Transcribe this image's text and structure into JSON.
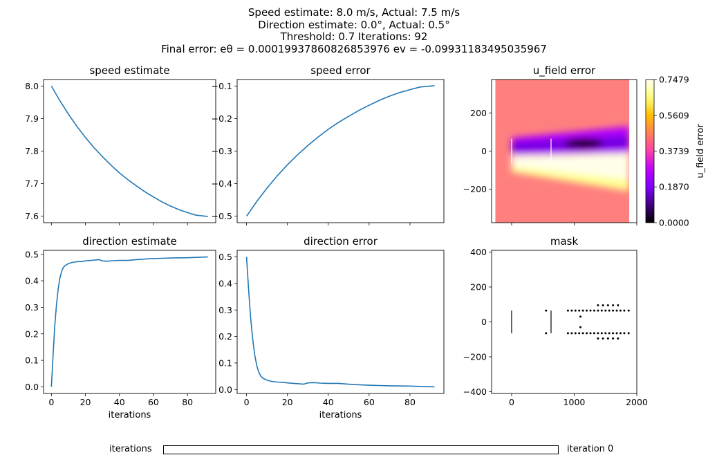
{
  "suptitle": {
    "line1": "Speed estimate: 8.0 m/s, Actual: 7.5 m/s",
    "line2": "Direction estimate: 0.0°, Actual: 0.5°",
    "line3": "Threshold: 0.7 Iterations: 92",
    "line4": "Final error: eθ = 0.00019937860826853976 ev = -0.09931183495035967"
  },
  "slider": {
    "label": "iterations",
    "value_text": "iteration 0",
    "value": 0
  },
  "colors": {
    "line": "#1f77b4",
    "field_bg": "#ff7f7f",
    "cmap": "gnuplot2"
  },
  "chart_data": [
    {
      "type": "line",
      "title": "speed estimate",
      "xlabel": "",
      "ylabel": "",
      "xlim": [
        -4.6,
        96.6
      ],
      "ylim": [
        7.58,
        8.02
      ],
      "xticks": [
        0,
        20,
        40,
        60,
        80
      ],
      "xtick_labels_visible": false,
      "yticks": [
        7.6,
        7.7,
        7.8,
        7.9,
        8.0
      ],
      "ytick_labels": [
        "7.6",
        "7.7",
        "7.8",
        "7.9",
        "8.0"
      ],
      "x": [
        0,
        5,
        10,
        15,
        20,
        25,
        30,
        35,
        40,
        45,
        50,
        55,
        60,
        65,
        70,
        75,
        80,
        85,
        92
      ],
      "y": [
        8.0,
        7.955,
        7.914,
        7.876,
        7.842,
        7.811,
        7.783,
        7.757,
        7.733,
        7.712,
        7.693,
        7.675,
        7.659,
        7.644,
        7.631,
        7.62,
        7.611,
        7.603,
        7.599
      ]
    },
    {
      "type": "line",
      "title": "speed error",
      "xlabel": "",
      "ylabel": "",
      "xlim": [
        -4.6,
        96.6
      ],
      "ylim": [
        -0.52,
        -0.08
      ],
      "xticks": [
        0,
        20,
        40,
        60,
        80
      ],
      "xtick_labels_visible": false,
      "yticks": [
        -0.5,
        -0.4,
        -0.3,
        -0.2,
        -0.1
      ],
      "ytick_labels": [
        "−0.5",
        "−0.4",
        "−0.3",
        "−0.2",
        "−0.1"
      ],
      "x": [
        0,
        5,
        10,
        15,
        20,
        25,
        30,
        35,
        40,
        45,
        50,
        55,
        60,
        65,
        70,
        75,
        80,
        85,
        92
      ],
      "y": [
        -0.5,
        -0.455,
        -0.414,
        -0.376,
        -0.342,
        -0.311,
        -0.283,
        -0.257,
        -0.233,
        -0.212,
        -0.193,
        -0.175,
        -0.159,
        -0.144,
        -0.131,
        -0.12,
        -0.111,
        -0.103,
        -0.099
      ]
    },
    {
      "type": "heatmap",
      "title": "u_field error",
      "xlabel": "",
      "ylabel": "",
      "xlim": [
        -320,
        2000
      ],
      "ylim": [
        -375,
        375
      ],
      "xticks": [
        0,
        1000,
        2000
      ],
      "xtick_labels_visible": false,
      "yticks": [
        -200,
        0,
        200
      ],
      "ytick_labels": [
        "−200",
        "0",
        "200"
      ],
      "extent": [
        -260,
        1880,
        -375,
        375
      ],
      "background_value": 0.5,
      "colorbar": {
        "label": "u_field error",
        "min": 0.0,
        "max": 0.7479,
        "ticks": [
          0.0,
          0.187,
          0.3739,
          0.5609,
          0.7479
        ],
        "tick_labels": [
          "0.0000",
          "0.1870",
          "0.3739",
          "0.5609",
          "0.7479"
        ]
      },
      "turbines": [
        [
          0,
          -65,
          65
        ],
        [
          630,
          -65,
          65
        ]
      ]
    },
    {
      "type": "line",
      "title": "direction estimate",
      "xlabel": "iterations",
      "ylabel": "",
      "xlim": [
        -4.6,
        96.6
      ],
      "ylim": [
        -0.025,
        0.515
      ],
      "xticks": [
        0,
        20,
        40,
        60,
        80
      ],
      "xtick_labels": [
        "0",
        "20",
        "40",
        "60",
        "80"
      ],
      "yticks": [
        0.0,
        0.1,
        0.2,
        0.3,
        0.4,
        0.5
      ],
      "ytick_labels": [
        "0.0",
        "0.1",
        "0.2",
        "0.3",
        "0.4",
        "0.5"
      ],
      "x": [
        0,
        1,
        2,
        3,
        4,
        5,
        6,
        7,
        8,
        10,
        12,
        15,
        18,
        20,
        23,
        25,
        28,
        30,
        33,
        36,
        40,
        45,
        50,
        55,
        60,
        65,
        70,
        80,
        92
      ],
      "y": [
        0.0,
        0.12,
        0.23,
        0.31,
        0.37,
        0.41,
        0.435,
        0.45,
        0.457,
        0.465,
        0.469,
        0.472,
        0.473,
        0.475,
        0.477,
        0.478,
        0.48,
        0.475,
        0.474,
        0.476,
        0.477,
        0.477,
        0.48,
        0.482,
        0.484,
        0.485,
        0.486,
        0.487,
        0.49
      ]
    },
    {
      "type": "line",
      "title": "direction error",
      "xlabel": "iterations",
      "ylabel": "",
      "xlim": [
        -4.6,
        96.6
      ],
      "ylim": [
        -0.015,
        0.525
      ],
      "xticks": [
        0,
        20,
        40,
        60,
        80
      ],
      "xtick_labels": [
        "0",
        "20",
        "40",
        "60",
        "80"
      ],
      "yticks": [
        0.0,
        0.1,
        0.2,
        0.3,
        0.4,
        0.5
      ],
      "ytick_labels": [
        "0.0",
        "0.1",
        "0.2",
        "0.3",
        "0.4",
        "0.5"
      ],
      "x": [
        0,
        1,
        2,
        3,
        4,
        5,
        6,
        7,
        8,
        10,
        12,
        15,
        18,
        20,
        23,
        25,
        28,
        30,
        33,
        36,
        40,
        45,
        50,
        55,
        60,
        65,
        70,
        80,
        92
      ],
      "y": [
        0.5,
        0.38,
        0.27,
        0.19,
        0.13,
        0.09,
        0.065,
        0.05,
        0.043,
        0.035,
        0.031,
        0.028,
        0.027,
        0.025,
        0.023,
        0.022,
        0.02,
        0.025,
        0.026,
        0.024,
        0.023,
        0.023,
        0.02,
        0.018,
        0.016,
        0.015,
        0.014,
        0.013,
        0.01
      ]
    },
    {
      "type": "scatter",
      "title": "mask",
      "xlabel": "",
      "ylabel": "",
      "xlim": [
        -320,
        2000
      ],
      "ylim": [
        -410,
        410
      ],
      "xticks": [
        0,
        1000,
        2000
      ],
      "xtick_labels": [
        "0",
        "1000",
        "2000"
      ],
      "yticks": [
        -400,
        -200,
        0,
        200,
        400
      ],
      "ytick_labels": [
        "−400",
        "−200",
        "0",
        "200",
        "400"
      ],
      "turbines": [
        [
          0,
          -65,
          65
        ],
        [
          630,
          -65,
          65
        ]
      ],
      "points": [
        [
          550,
          65
        ],
        [
          550,
          -65
        ],
        [
          900,
          65
        ],
        [
          960,
          65
        ],
        [
          1020,
          65
        ],
        [
          1080,
          65
        ],
        [
          1140,
          65
        ],
        [
          1200,
          65
        ],
        [
          1260,
          65
        ],
        [
          1320,
          65
        ],
        [
          1380,
          65
        ],
        [
          1440,
          65
        ],
        [
          1500,
          65
        ],
        [
          1560,
          65
        ],
        [
          1620,
          65
        ],
        [
          1680,
          65
        ],
        [
          1740,
          65
        ],
        [
          1800,
          65
        ],
        [
          1870,
          65
        ],
        [
          900,
          -65
        ],
        [
          960,
          -65
        ],
        [
          1020,
          -65
        ],
        [
          1080,
          -65
        ],
        [
          1140,
          -65
        ],
        [
          1200,
          -65
        ],
        [
          1260,
          -65
        ],
        [
          1320,
          -65
        ],
        [
          1380,
          -65
        ],
        [
          1440,
          -65
        ],
        [
          1500,
          -65
        ],
        [
          1560,
          -65
        ],
        [
          1620,
          -65
        ],
        [
          1680,
          -65
        ],
        [
          1740,
          -65
        ],
        [
          1800,
          -65
        ],
        [
          1870,
          -65
        ],
        [
          1100,
          30
        ],
        [
          1100,
          -30
        ],
        [
          1380,
          95
        ],
        [
          1460,
          95
        ],
        [
          1540,
          95
        ],
        [
          1620,
          95
        ],
        [
          1700,
          95
        ],
        [
          1380,
          -95
        ],
        [
          1460,
          -95
        ],
        [
          1540,
          -95
        ],
        [
          1620,
          -95
        ],
        [
          1700,
          -95
        ]
      ]
    }
  ]
}
